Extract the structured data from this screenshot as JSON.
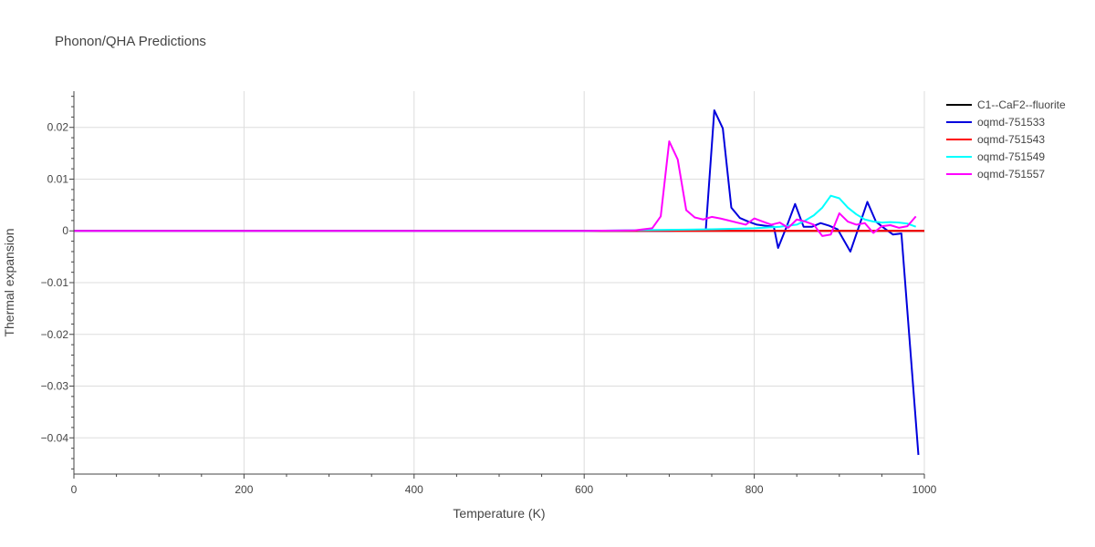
{
  "chart_data": {
    "type": "line",
    "title": "Phonon/QHA Predictions",
    "xlabel": "Temperature (K)",
    "ylabel": "Thermal expansion",
    "xlim": [
      0,
      1000
    ],
    "ylim": [
      -0.047,
      0.027
    ],
    "xticks": [
      0,
      200,
      400,
      600,
      800,
      1000
    ],
    "xtick_labels": [
      "0",
      "200",
      "400",
      "600",
      "800",
      "1000"
    ],
    "yticks": [
      -0.04,
      -0.03,
      -0.02,
      -0.01,
      0,
      0.01,
      0.02
    ],
    "ytick_labels": [
      "−0.04",
      "−0.03",
      "−0.02",
      "−0.01",
      "0",
      "0.01",
      "0.02"
    ],
    "grid": true,
    "legend_position": "top-right",
    "series": [
      {
        "name": "C1--CaF2--fluorite",
        "color": "#000000",
        "x": [
          0,
          100,
          200,
          300,
          400,
          500,
          600,
          700,
          800,
          900,
          1000
        ],
        "y": [
          0,
          0,
          0,
          0,
          0,
          0,
          0,
          0,
          0,
          0,
          0
        ]
      },
      {
        "name": "oqmd-751533",
        "color": "#0000dd",
        "x": [
          0,
          100,
          200,
          300,
          400,
          500,
          600,
          700,
          743,
          753,
          763,
          773,
          783,
          793,
          803,
          813,
          823,
          828,
          838,
          848,
          858,
          868,
          878,
          888,
          898,
          913,
          933,
          943,
          953,
          963,
          973,
          993
        ],
        "y": [
          0,
          0,
          0,
          0,
          0,
          0,
          0,
          0,
          0.0002,
          0.0233,
          0.0198,
          0.0045,
          0.0025,
          0.0018,
          0.0012,
          0.001,
          0.0008,
          -0.0033,
          0.0008,
          0.0052,
          0.0008,
          0.0008,
          0.0015,
          0.001,
          0.0003,
          -0.004,
          0.0056,
          0.0018,
          0.0005,
          -0.0007,
          -0.0005,
          -0.0433
        ]
      },
      {
        "name": "oqmd-751543",
        "color": "#ff0000",
        "x": [
          0,
          100,
          200,
          300,
          400,
          500,
          600,
          700,
          800,
          900,
          1000
        ],
        "y": [
          0,
          0,
          0,
          0,
          0,
          0,
          0,
          0,
          0,
          0,
          0
        ]
      },
      {
        "name": "oqmd-751549",
        "color": "#00ffff",
        "x": [
          0,
          100,
          200,
          300,
          400,
          500,
          600,
          650,
          700,
          750,
          800,
          830,
          850,
          860,
          870,
          880,
          890,
          900,
          910,
          920,
          930,
          940,
          950,
          960,
          970,
          980,
          990
        ],
        "y": [
          0,
          0,
          0,
          0,
          0,
          0,
          0,
          0.0001,
          0.0002,
          0.0003,
          0.0005,
          0.0008,
          0.0012,
          0.002,
          0.003,
          0.0045,
          0.0068,
          0.0063,
          0.0045,
          0.0032,
          0.0022,
          0.0018,
          0.0016,
          0.0017,
          0.0016,
          0.0014,
          0.0008
        ]
      },
      {
        "name": "oqmd-751557",
        "color": "#ff00ff",
        "x": [
          0,
          100,
          200,
          300,
          400,
          500,
          600,
          660,
          680,
          690,
          700,
          710,
          720,
          730,
          740,
          750,
          760,
          770,
          780,
          790,
          800,
          810,
          820,
          830,
          840,
          850,
          860,
          870,
          880,
          890,
          900,
          910,
          920,
          930,
          940,
          950,
          960,
          970,
          980,
          990
        ],
        "y": [
          0,
          0,
          0,
          0,
          0,
          0,
          0,
          0.0001,
          0.0005,
          0.0028,
          0.0173,
          0.0138,
          0.004,
          0.0026,
          0.0022,
          0.0027,
          0.0024,
          0.002,
          0.0016,
          0.0012,
          0.0024,
          0.0018,
          0.0012,
          0.0016,
          0.0006,
          0.0022,
          0.0018,
          0.0012,
          -0.001,
          -0.0007,
          0.0034,
          0.0018,
          0.0012,
          0.0015,
          -0.0004,
          0.0009,
          0.0011,
          0.0006,
          0.0009,
          0.0028
        ]
      }
    ]
  }
}
